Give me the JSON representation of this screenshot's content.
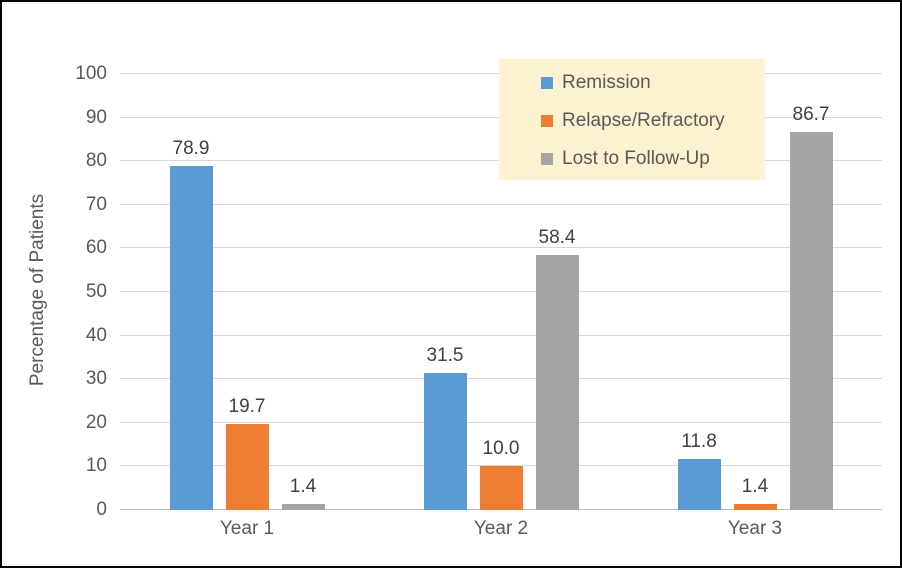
{
  "chart_data": {
    "type": "bar",
    "title": "",
    "xlabel": "",
    "ylabel": "Percentage of Patients",
    "ylim": [
      0,
      100
    ],
    "yticks": [
      0,
      10,
      20,
      30,
      40,
      50,
      60,
      70,
      80,
      90,
      100
    ],
    "categories": [
      "Year 1",
      "Year 2",
      "Year 3"
    ],
    "series": [
      {
        "name": "Remission",
        "color": "#5B9BD5",
        "values": [
          78.9,
          31.5,
          11.8
        ],
        "labels": [
          "78.9",
          "31.5",
          "11.8"
        ]
      },
      {
        "name": "Relapse/Refractory",
        "color": "#ED7D31",
        "values": [
          19.7,
          10.0,
          1.4
        ],
        "labels": [
          "19.7",
          "10.0",
          "1.4"
        ]
      },
      {
        "name": "Lost to Follow-Up",
        "color": "#A5A5A5",
        "values": [
          1.4,
          58.4,
          86.7
        ],
        "labels": [
          "1.4",
          "58.4",
          "86.7"
        ]
      }
    ],
    "grid": true,
    "legend_position": "top-right",
    "legend_background": "#FCF2D2",
    "colors": {
      "gridline": "#D9D9D9",
      "axis_text": "#595959",
      "data_label": "#404040"
    }
  }
}
